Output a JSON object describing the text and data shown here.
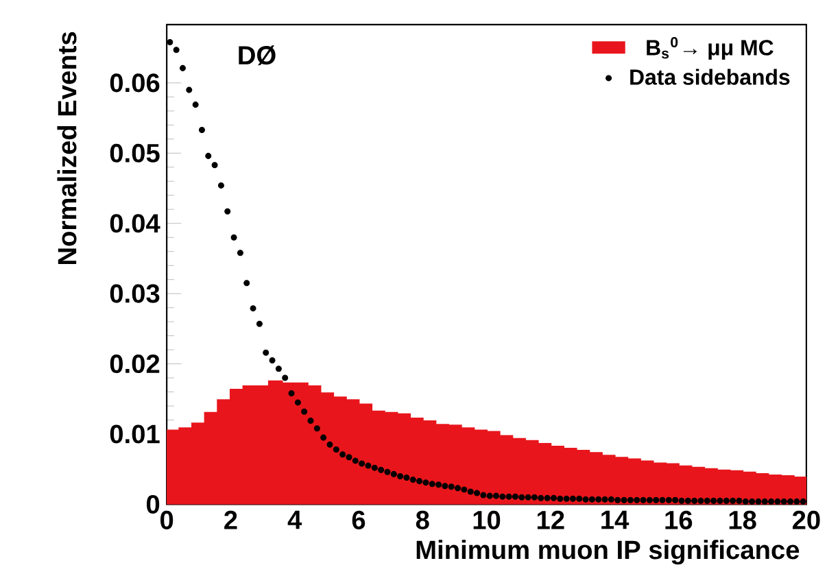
{
  "chart_data": {
    "type": "histogram",
    "xlabel": "Minimum muon IP significance",
    "ylabel": "Normalized Events",
    "annotations": [
      "DØ"
    ],
    "xlim": [
      0,
      20
    ],
    "ylim": [
      0,
      0.0683
    ],
    "xticks": [
      0,
      2,
      4,
      6,
      8,
      10,
      12,
      14,
      16,
      18,
      20
    ],
    "yticks": [
      0,
      0.01,
      0.02,
      0.03,
      0.04,
      0.05,
      0.06
    ],
    "legend": "top right",
    "marker": "circle",
    "bins": [
      0,
      0.4,
      0.8,
      1.2,
      1.6,
      2.0,
      2.4,
      2.8,
      3.2,
      3.6,
      4.0,
      4.4,
      4.8,
      5.2,
      5.6,
      6.0,
      6.4,
      6.8,
      7.2,
      7.6,
      8.0,
      8.4,
      8.8,
      9.2,
      9.6,
      10.0,
      10.4,
      10.8,
      11.2,
      11.6,
      12.0,
      12.4,
      12.8,
      13.2,
      13.6,
      14.0,
      14.4,
      14.8,
      15.2,
      15.6,
      16.0,
      16.4,
      16.8,
      17.2,
      17.6,
      18.0,
      18.4,
      18.8,
      19.2,
      19.6,
      20.0
    ],
    "series": [
      {
        "name": "B$_{s}$$^{0}$→ μμ MC",
        "type": "histogram",
        "color": "#e8161c",
        "values": [
          0.0105,
          0.0108,
          0.0115,
          0.013,
          0.0148,
          0.0163,
          0.0168,
          0.0168,
          0.0175,
          0.0172,
          0.0172,
          0.0168,
          0.0158,
          0.0152,
          0.0148,
          0.0142,
          0.0132,
          0.013,
          0.0128,
          0.0122,
          0.0118,
          0.0113,
          0.0112,
          0.0108,
          0.0105,
          0.0103,
          0.0097,
          0.0093,
          0.009,
          0.0086,
          0.0082,
          0.0079,
          0.0076,
          0.0073,
          0.0069,
          0.0066,
          0.0064,
          0.0061,
          0.0058,
          0.0057,
          0.0054,
          0.0052,
          0.005,
          0.0048,
          0.0047,
          0.0045,
          0.0043,
          0.0041,
          0.004,
          0.0038
        ]
      },
      {
        "name": "Data sidebands",
        "type": "scatter",
        "color": "#000000",
        "x": [
          0.1,
          0.3,
          0.5,
          0.7,
          0.9,
          1.1,
          1.3,
          1.5,
          1.7,
          1.9,
          2.1,
          2.3,
          2.5,
          2.7,
          2.9,
          3.1,
          3.3,
          3.5,
          3.7,
          3.9,
          4.1,
          4.3,
          4.5,
          4.7,
          4.9,
          5.1,
          5.3,
          5.5,
          5.7,
          5.9,
          6.1,
          6.3,
          6.5,
          6.7,
          6.9,
          7.1,
          7.3,
          7.5,
          7.7,
          7.9,
          8.1,
          8.3,
          8.5,
          8.7,
          8.9,
          9.1,
          9.3,
          9.5,
          9.7,
          9.9,
          10.1,
          10.3,
          10.5,
          10.7,
          10.9,
          11.1,
          11.3,
          11.5,
          11.7,
          11.9,
          12.1,
          12.3,
          12.5,
          12.7,
          12.9,
          13.1,
          13.3,
          13.5,
          13.7,
          13.9,
          14.1,
          14.3,
          14.5,
          14.7,
          14.9,
          15.1,
          15.3,
          15.5,
          15.7,
          15.9,
          16.1,
          16.3,
          16.5,
          16.7,
          16.9,
          17.1,
          17.3,
          17.5,
          17.7,
          17.9,
          18.1,
          18.3,
          18.5,
          18.7,
          18.9,
          19.1,
          19.3,
          19.5,
          19.7,
          19.9
        ],
        "values": [
          0.0658,
          0.0647,
          0.0621,
          0.059,
          0.0569,
          0.0533,
          0.0496,
          0.0483,
          0.0454,
          0.0417,
          0.038,
          0.0358,
          0.0315,
          0.0279,
          0.0257,
          0.0216,
          0.0205,
          0.0193,
          0.018,
          0.0158,
          0.0145,
          0.0132,
          0.0119,
          0.0108,
          0.0095,
          0.0085,
          0.0078,
          0.0071,
          0.0067,
          0.0062,
          0.0058,
          0.0055,
          0.0052,
          0.0049,
          0.0046,
          0.0043,
          0.004,
          0.0038,
          0.0035,
          0.0033,
          0.0031,
          0.0029,
          0.0028,
          0.0026,
          0.0025,
          0.0023,
          0.0021,
          0.0018,
          0.0016,
          0.0013,
          0.0012,
          0.0012,
          0.0011,
          0.0011,
          0.0011,
          0.001,
          0.001,
          0.001,
          0.0009,
          0.0009,
          0.0009,
          0.0008,
          0.0008,
          0.0008,
          0.0008,
          0.0007,
          0.0007,
          0.0007,
          0.0007,
          0.0007,
          0.0006,
          0.0006,
          0.0006,
          0.0006,
          0.0006,
          0.0006,
          0.0006,
          0.0006,
          0.0006,
          0.0006,
          0.0005,
          0.0005,
          0.0005,
          0.0005,
          0.0005,
          0.0005,
          0.0005,
          0.0005,
          0.0005,
          0.0005,
          0.0004,
          0.0004,
          0.0004,
          0.0004,
          0.0004,
          0.0004,
          0.0004,
          0.0004,
          0.0004,
          0.0004
        ]
      }
    ]
  }
}
